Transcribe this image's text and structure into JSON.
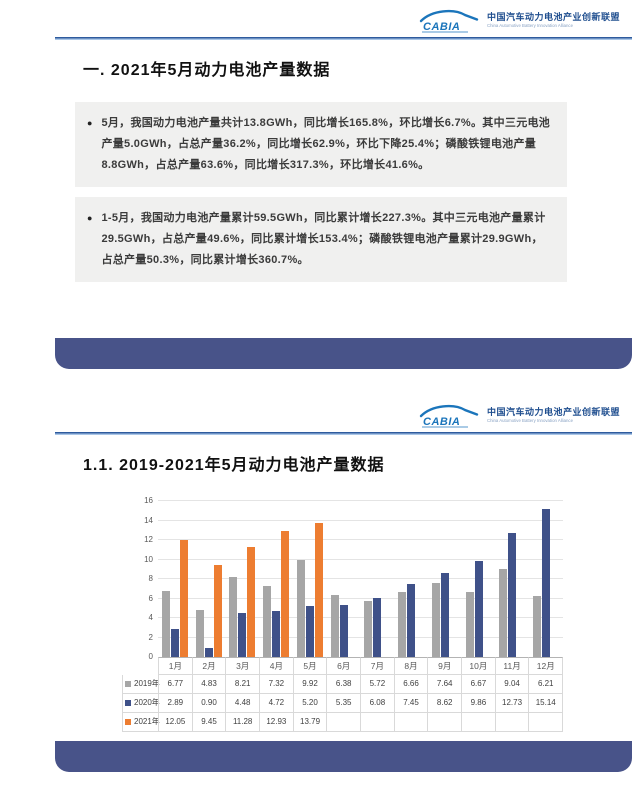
{
  "brand": {
    "logo_text": "CABIA",
    "org_cn": "中国汽车动力电池产业创新联盟",
    "org_en": "China Automotive Battery Innovation Alliance",
    "logo_blue": "#1b75bb"
  },
  "bullet_char": "●",
  "page1": {
    "title": "一. 2021年5月动力电池产量数据",
    "bullets": [
      "5月，我国动力电池产量共计13.8GWh，同比增长165.8%，环比增长6.7%。其中三元电池产量5.0GWh，占总产量36.2%，同比增长62.9%，环比下降25.4%；磷酸铁锂电池产量8.8GWh，占总产量63.6%，同比增长317.3%，环比增长41.6%。",
      "1-5月，我国动力电池产量累计59.5GWh，同比累计增长227.3%。其中三元电池产量累计29.5GWh，占总产量49.6%，同比累计增长153.4%；磷酸铁锂电池产量累计29.9GWh，占总产量50.3%，同比累计增长360.7%。"
    ]
  },
  "page2": {
    "title": "1.1. 2019-2021年5月动力电池产量数据"
  },
  "chart_data": {
    "type": "bar",
    "title": "",
    "xlabel": "",
    "ylabel": "",
    "categories": [
      "1月",
      "2月",
      "3月",
      "4月",
      "5月",
      "6月",
      "7月",
      "8月",
      "9月",
      "10月",
      "11月",
      "12月"
    ],
    "series": [
      {
        "name": "2019年",
        "color": "#a6a6a6",
        "values": [
          6.77,
          4.83,
          8.21,
          7.32,
          9.92,
          6.38,
          5.72,
          6.66,
          7.64,
          6.67,
          9.04,
          6.21
        ]
      },
      {
        "name": "2020年",
        "color": "#3f5189",
        "values": [
          2.89,
          0.9,
          4.48,
          4.72,
          5.2,
          5.35,
          6.08,
          7.45,
          8.62,
          9.86,
          12.73,
          15.14
        ]
      },
      {
        "name": "2021年",
        "color": "#ed7d31",
        "values": [
          12.05,
          9.45,
          11.28,
          12.93,
          13.79
        ]
      }
    ],
    "ylim": [
      0,
      16
    ],
    "yticks": [
      0,
      2,
      4,
      6,
      8,
      10,
      12,
      14,
      16
    ],
    "grid": true,
    "legend_position": "table-left",
    "data_table_shown": true
  },
  "colors": {
    "divider_bar": "#485389",
    "header_line_dark": "#2e5b9e",
    "header_line_light": "#a9c6e7"
  }
}
